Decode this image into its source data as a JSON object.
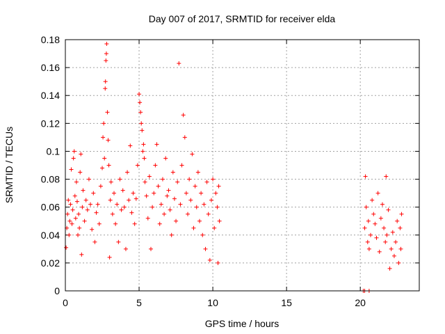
{
  "chart_data": {
    "type": "scatter",
    "title": "Day 007 of 2017, SRMTID for receiver elda",
    "xlabel": "GPS time / hours",
    "ylabel": "SRMTID / TECUs",
    "xlim": [
      0,
      24
    ],
    "ylim": [
      0,
      0.18
    ],
    "xticks": [
      0,
      5,
      10,
      15,
      20
    ],
    "xtick_labels": [
      "0",
      "5",
      "10",
      "15",
      "20"
    ],
    "yticks": [
      0,
      0.02,
      0.04,
      0.06,
      0.08,
      0.1,
      0.12,
      0.14,
      0.16,
      0.18
    ],
    "ytick_labels": [
      "0",
      "0.02",
      "0.04",
      "0.06",
      "0.08",
      "0.1",
      "0.12",
      "0.14",
      "0.16",
      "0.18"
    ],
    "grid": true,
    "marker": "+",
    "color": "#ff0000",
    "series": [
      {
        "name": "SRMTID",
        "points": [
          [
            0.05,
            0.031
          ],
          [
            0.1,
            0.045
          ],
          [
            0.15,
            0.055
          ],
          [
            0.2,
            0.065
          ],
          [
            0.25,
            0.04
          ],
          [
            0.3,
            0.05
          ],
          [
            0.35,
            0.062
          ],
          [
            0.4,
            0.087
          ],
          [
            0.45,
            0.048
          ],
          [
            0.5,
            0.058
          ],
          [
            0.55,
            0.095
          ],
          [
            0.6,
            0.1
          ],
          [
            0.65,
            0.068
          ],
          [
            0.7,
            0.052
          ],
          [
            0.75,
            0.078
          ],
          [
            0.8,
            0.064
          ],
          [
            0.85,
            0.04
          ],
          [
            0.9,
            0.055
          ],
          [
            0.95,
            0.045
          ],
          [
            1.0,
            0.085
          ],
          [
            1.05,
            0.098
          ],
          [
            1.1,
            0.026
          ],
          [
            1.15,
            0.06
          ],
          [
            1.2,
            0.072
          ],
          [
            1.3,
            0.05
          ],
          [
            1.4,
            0.065
          ],
          [
            1.5,
            0.058
          ],
          [
            1.6,
            0.08
          ],
          [
            1.7,
            0.062
          ],
          [
            1.8,
            0.044
          ],
          [
            1.9,
            0.07
          ],
          [
            2.0,
            0.035
          ],
          [
            2.1,
            0.056
          ],
          [
            2.2,
            0.062
          ],
          [
            2.3,
            0.048
          ],
          [
            2.4,
            0.075
          ],
          [
            2.5,
            0.088
          ],
          [
            2.55,
            0.11
          ],
          [
            2.6,
            0.12
          ],
          [
            2.65,
            0.095
          ],
          [
            2.7,
            0.145
          ],
          [
            2.72,
            0.15
          ],
          [
            2.75,
            0.165
          ],
          [
            2.78,
            0.17
          ],
          [
            2.8,
            0.177
          ],
          [
            2.85,
            0.128
          ],
          [
            2.9,
            0.108
          ],
          [
            2.95,
            0.09
          ],
          [
            3.0,
            0.024
          ],
          [
            3.05,
            0.065
          ],
          [
            3.1,
            0.078
          ],
          [
            3.2,
            0.055
          ],
          [
            3.3,
            0.07
          ],
          [
            3.4,
            0.048
          ],
          [
            3.5,
            0.062
          ],
          [
            3.6,
            0.035
          ],
          [
            3.7,
            0.08
          ],
          [
            3.8,
            0.058
          ],
          [
            3.9,
            0.072
          ],
          [
            4.0,
            0.06
          ],
          [
            4.1,
            0.03
          ],
          [
            4.2,
            0.085
          ],
          [
            4.3,
            0.065
          ],
          [
            4.4,
            0.104
          ],
          [
            4.5,
            0.056
          ],
          [
            4.6,
            0.07
          ],
          [
            4.7,
            0.048
          ],
          [
            4.8,
            0.066
          ],
          [
            4.9,
            0.09
          ],
          [
            5.0,
            0.141
          ],
          [
            5.05,
            0.135
          ],
          [
            5.1,
            0.128
          ],
          [
            5.15,
            0.12
          ],
          [
            5.2,
            0.115
          ],
          [
            5.25,
            0.1
          ],
          [
            5.3,
            0.105
          ],
          [
            5.35,
            0.095
          ],
          [
            5.4,
            0.078
          ],
          [
            5.5,
            0.068
          ],
          [
            5.6,
            0.052
          ],
          [
            5.7,
            0.082
          ],
          [
            5.8,
            0.03
          ],
          [
            5.9,
            0.06
          ],
          [
            6.0,
            0.07
          ],
          [
            6.1,
            0.09
          ],
          [
            6.2,
            0.105
          ],
          [
            6.3,
            0.075
          ],
          [
            6.4,
            0.048
          ],
          [
            6.5,
            0.062
          ],
          [
            6.6,
            0.08
          ],
          [
            6.7,
            0.055
          ],
          [
            6.8,
            0.095
          ],
          [
            6.9,
            0.068
          ],
          [
            7.0,
            0.072
          ],
          [
            7.1,
            0.058
          ],
          [
            7.2,
            0.04
          ],
          [
            7.3,
            0.085
          ],
          [
            7.4,
            0.066
          ],
          [
            7.5,
            0.05
          ],
          [
            7.6,
            0.078
          ],
          [
            7.7,
            0.163
          ],
          [
            7.8,
            0.062
          ],
          [
            7.9,
            0.09
          ],
          [
            8.0,
            0.126
          ],
          [
            8.1,
            0.11
          ],
          [
            8.2,
            0.07
          ],
          [
            8.3,
            0.055
          ],
          [
            8.4,
            0.08
          ],
          [
            8.5,
            0.065
          ],
          [
            8.6,
            0.098
          ],
          [
            8.7,
            0.045
          ],
          [
            8.8,
            0.075
          ],
          [
            8.9,
            0.06
          ],
          [
            9.0,
            0.085
          ],
          [
            9.1,
            0.05
          ],
          [
            9.2,
            0.07
          ],
          [
            9.3,
            0.04
          ],
          [
            9.4,
            0.062
          ],
          [
            9.5,
            0.03
          ],
          [
            9.6,
            0.078
          ],
          [
            9.7,
            0.055
          ],
          [
            9.8,
            0.022
          ],
          [
            9.9,
            0.065
          ],
          [
            10.0,
            0.08
          ],
          [
            10.1,
            0.045
          ],
          [
            10.2,
            0.07
          ],
          [
            10.3,
            0.06
          ],
          [
            10.35,
            0.02
          ],
          [
            10.4,
            0.075
          ],
          [
            10.45,
            0.05
          ],
          [
            20.2,
            0.0
          ],
          [
            20.3,
            0.0
          ],
          [
            20.6,
            0.0
          ],
          [
            20.3,
            0.045
          ],
          [
            20.35,
            0.082
          ],
          [
            20.4,
            0.06
          ],
          [
            20.5,
            0.035
          ],
          [
            20.55,
            0.05
          ],
          [
            20.6,
            0.03
          ],
          [
            20.7,
            0.04
          ],
          [
            20.8,
            0.065
          ],
          [
            20.9,
            0.055
          ],
          [
            21.0,
            0.048
          ],
          [
            21.1,
            0.038
          ],
          [
            21.2,
            0.07
          ],
          [
            21.3,
            0.028
          ],
          [
            21.4,
            0.052
          ],
          [
            21.5,
            0.062
          ],
          [
            21.6,
            0.045
          ],
          [
            21.7,
            0.035
          ],
          [
            21.75,
            0.082
          ],
          [
            21.8,
            0.04
          ],
          [
            21.9,
            0.058
          ],
          [
            22.0,
            0.016
          ],
          [
            22.1,
            0.03
          ],
          [
            22.2,
            0.042
          ],
          [
            22.3,
            0.025
          ],
          [
            22.4,
            0.035
          ],
          [
            22.5,
            0.05
          ],
          [
            22.6,
            0.02
          ],
          [
            22.7,
            0.045
          ],
          [
            22.75,
            0.03
          ],
          [
            22.8,
            0.055
          ]
        ]
      }
    ]
  }
}
